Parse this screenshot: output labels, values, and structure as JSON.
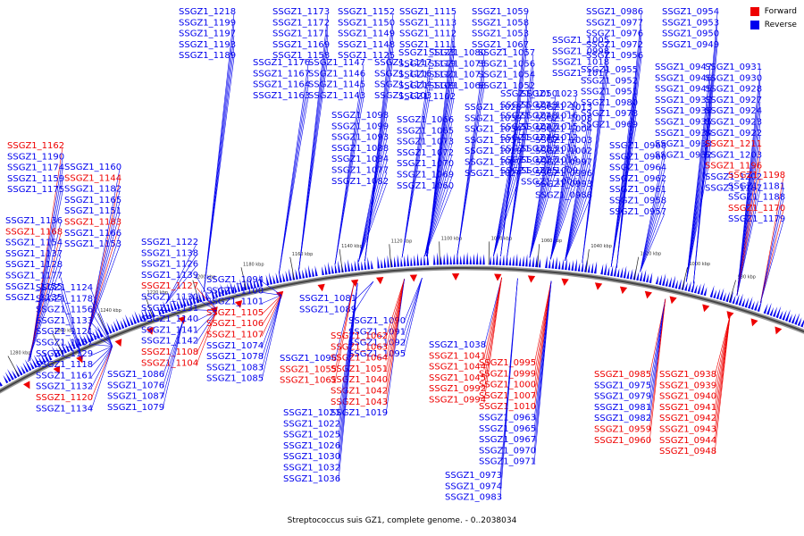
{
  "legend": {
    "forward_label": "Forward",
    "reverse_label": "Reverse",
    "forward_color": "#ee0000",
    "reverse_color": "#0000ee"
  },
  "caption": "Streptococcus suis GZ1, complete genome. - 0..2038034",
  "ticks": [
    "980 kbp",
    "1000 kbp",
    "1020 kbp",
    "1040 kbp",
    "1060 kbp",
    "1080 kbp",
    "1100 kbp",
    "1120 kbp",
    "1140 kbp",
    "1160 kbp",
    "1180 kbp",
    "1200 kbp",
    "1220 kbp",
    "1240 kbp",
    "1260 kbp",
    "1280 kbp"
  ],
  "genes": [
    {
      "name": "SSGZ1_1218",
      "strand": "reverse"
    },
    {
      "name": "SSGZ1_1199",
      "strand": "reverse"
    },
    {
      "name": "SSGZ1_1197",
      "strand": "reverse"
    },
    {
      "name": "SSGZ1_1193",
      "strand": "reverse"
    },
    {
      "name": "SSGZ1_1189",
      "strand": "reverse"
    },
    {
      "name": "SSGZ1_1176",
      "strand": "reverse"
    },
    {
      "name": "SSGZ1_1167",
      "strand": "reverse"
    },
    {
      "name": "SSGZ1_1164",
      "strand": "reverse"
    },
    {
      "name": "SSGZ1_1163",
      "strand": "reverse"
    },
    {
      "name": "SSGZ1_1173",
      "strand": "reverse"
    },
    {
      "name": "SSGZ1_1172",
      "strand": "reverse"
    },
    {
      "name": "SSGZ1_1171",
      "strand": "reverse"
    },
    {
      "name": "SSGZ1_1169",
      "strand": "reverse"
    },
    {
      "name": "SSGZ1_1158",
      "strand": "reverse"
    },
    {
      "name": "SSGZ1_1147",
      "strand": "reverse"
    },
    {
      "name": "SSGZ1_1146",
      "strand": "reverse"
    },
    {
      "name": "SSGZ1_1145",
      "strand": "reverse"
    },
    {
      "name": "SSGZ1_1143",
      "strand": "reverse"
    },
    {
      "name": "SSGZ1_1152",
      "strand": "reverse"
    },
    {
      "name": "SSGZ1_1150",
      "strand": "reverse"
    },
    {
      "name": "SSGZ1_1149",
      "strand": "reverse"
    },
    {
      "name": "SSGZ1_1148",
      "strand": "reverse"
    },
    {
      "name": "SSGZ1_1125",
      "strand": "reverse"
    },
    {
      "name": "SSGZ1_1117",
      "strand": "reverse"
    },
    {
      "name": "SSGZ1_1116",
      "strand": "reverse"
    },
    {
      "name": "SSGZ1_1114",
      "strand": "reverse"
    },
    {
      "name": "SSGZ1_1103",
      "strand": "reverse"
    },
    {
      "name": "SSGZ1_1115",
      "strand": "reverse"
    },
    {
      "name": "SSGZ1_1113",
      "strand": "reverse"
    },
    {
      "name": "SSGZ1_1112",
      "strand": "reverse"
    },
    {
      "name": "SSGZ1_1111",
      "strand": "reverse"
    },
    {
      "name": "SSGZ1_1123",
      "strand": "reverse"
    },
    {
      "name": "SSGZ1_1119",
      "strand": "reverse"
    },
    {
      "name": "SSGZ1_1110",
      "strand": "reverse"
    },
    {
      "name": "SSGZ1_1109",
      "strand": "reverse"
    },
    {
      "name": "SSGZ1_1102",
      "strand": "reverse"
    },
    {
      "name": "SSGZ1_1098",
      "strand": "reverse"
    },
    {
      "name": "SSGZ1_1099",
      "strand": "reverse"
    },
    {
      "name": "SSGZ1_1093",
      "strand": "reverse"
    },
    {
      "name": "SSGZ1_1088",
      "strand": "reverse"
    },
    {
      "name": "SSGZ1_1084",
      "strand": "reverse"
    },
    {
      "name": "SSGZ1_1077",
      "strand": "reverse"
    },
    {
      "name": "SSGZ1_1082",
      "strand": "reverse"
    },
    {
      "name": "SSGZ1_1080",
      "strand": "reverse"
    },
    {
      "name": "SSGZ1_1075",
      "strand": "reverse"
    },
    {
      "name": "SSGZ1_1071",
      "strand": "reverse"
    },
    {
      "name": "SSGZ1_1068",
      "strand": "reverse"
    },
    {
      "name": "SSGZ1_1066",
      "strand": "reverse"
    },
    {
      "name": "SSGZ1_1065",
      "strand": "reverse"
    },
    {
      "name": "SSGZ1_1073",
      "strand": "reverse"
    },
    {
      "name": "SSGZ1_1072",
      "strand": "reverse"
    },
    {
      "name": "SSGZ1_1070",
      "strand": "reverse"
    },
    {
      "name": "SSGZ1_1069",
      "strand": "reverse"
    },
    {
      "name": "SSGZ1_1060",
      "strand": "reverse"
    },
    {
      "name": "SSGZ1_1059",
      "strand": "reverse"
    },
    {
      "name": "SSGZ1_1058",
      "strand": "reverse"
    },
    {
      "name": "SSGZ1_1053",
      "strand": "reverse"
    },
    {
      "name": "SSGZ1_1067",
      "strand": "reverse"
    },
    {
      "name": "SSGZ1_1057",
      "strand": "reverse"
    },
    {
      "name": "SSGZ1_1056",
      "strand": "reverse"
    },
    {
      "name": "SSGZ1_1054",
      "strand": "reverse"
    },
    {
      "name": "SSGZ1_1052",
      "strand": "reverse"
    },
    {
      "name": "SSGZ1_1050",
      "strand": "reverse"
    },
    {
      "name": "SSGZ1_1049",
      "strand": "reverse"
    },
    {
      "name": "SSGZ1_1048",
      "strand": "reverse"
    },
    {
      "name": "SSGZ1_1047",
      "strand": "reverse"
    },
    {
      "name": "SSGZ1_1046",
      "strand": "reverse"
    },
    {
      "name": "SSGZ1_1033",
      "strand": "reverse"
    },
    {
      "name": "SSGZ1_1037",
      "strand": "reverse"
    },
    {
      "name": "SSGZ1_1035",
      "strand": "reverse"
    },
    {
      "name": "SSGZ1_1028",
      "strand": "reverse"
    },
    {
      "name": "SSGZ1_1039",
      "strand": "reverse"
    },
    {
      "name": "SSGZ1_1034",
      "strand": "reverse"
    },
    {
      "name": "SSGZ1_1031",
      "strand": "reverse"
    },
    {
      "name": "SSGZ1_1029",
      "strand": "reverse"
    },
    {
      "name": "SSGZ1_1027",
      "strand": "reverse"
    },
    {
      "name": "SSGZ1_1024",
      "strand": "reverse"
    },
    {
      "name": "SSGZ1_1023",
      "strand": "reverse"
    },
    {
      "name": "SSGZ1_1020",
      "strand": "reverse"
    },
    {
      "name": "SSGZ1_1016",
      "strand": "reverse"
    },
    {
      "name": "SSGZ1_1015",
      "strand": "reverse"
    },
    {
      "name": "SSGZ1_1012",
      "strand": "reverse"
    },
    {
      "name": "SSGZ1_1011",
      "strand": "reverse"
    },
    {
      "name": "SSGZ1_1014",
      "strand": "reverse"
    },
    {
      "name": "SSGZ1_1009",
      "strand": "reverse"
    },
    {
      "name": "SSGZ1_1006",
      "strand": "reverse"
    },
    {
      "name": "SSGZ1_1005",
      "strand": "reverse"
    },
    {
      "name": "SSGZ1_0998",
      "strand": "reverse"
    },
    {
      "name": "SSGZ1_1018",
      "strand": "reverse"
    },
    {
      "name": "SSGZ1_1017",
      "strand": "reverse"
    },
    {
      "name": "SSGZ1_1013",
      "strand": "reverse"
    },
    {
      "name": "SSGZ1_1008",
      "strand": "reverse"
    },
    {
      "name": "SSGZ1_1004",
      "strand": "reverse"
    },
    {
      "name": "SSGZ1_1003",
      "strand": "reverse"
    },
    {
      "name": "SSGZ1_1002",
      "strand": "reverse"
    },
    {
      "name": "SSGZ1_0997",
      "strand": "reverse"
    },
    {
      "name": "SSGZ1_0996",
      "strand": "reverse"
    },
    {
      "name": "SSGZ1_0993",
      "strand": "reverse"
    },
    {
      "name": "SSGZ1_0988",
      "strand": "reverse"
    },
    {
      "name": "SSGZ1_0986",
      "strand": "reverse"
    },
    {
      "name": "SSGZ1_0977",
      "strand": "reverse"
    },
    {
      "name": "SSGZ1_0976",
      "strand": "reverse"
    },
    {
      "name": "SSGZ1_0972",
      "strand": "reverse"
    },
    {
      "name": "SSGZ1_0956",
      "strand": "reverse"
    },
    {
      "name": "SSGZ1_0955",
      "strand": "reverse"
    },
    {
      "name": "SSGZ1_0952",
      "strand": "reverse"
    },
    {
      "name": "SSGZ1_0951",
      "strand": "reverse"
    },
    {
      "name": "SSGZ1_0980",
      "strand": "reverse"
    },
    {
      "name": "SSGZ1_0978",
      "strand": "reverse"
    },
    {
      "name": "SSGZ1_0969",
      "strand": "reverse"
    },
    {
      "name": "SSGZ1_0968",
      "strand": "reverse"
    },
    {
      "name": "SSGZ1_0966",
      "strand": "reverse"
    },
    {
      "name": "SSGZ1_0964",
      "strand": "reverse"
    },
    {
      "name": "SSGZ1_0962",
      "strand": "reverse"
    },
    {
      "name": "SSGZ1_0961",
      "strand": "reverse"
    },
    {
      "name": "SSGZ1_0958",
      "strand": "reverse"
    },
    {
      "name": "SSGZ1_0957",
      "strand": "reverse"
    },
    {
      "name": "SSGZ1_0954",
      "strand": "reverse"
    },
    {
      "name": "SSGZ1_0953",
      "strand": "reverse"
    },
    {
      "name": "SSGZ1_0950",
      "strand": "reverse"
    },
    {
      "name": "SSGZ1_0949",
      "strand": "reverse"
    },
    {
      "name": "SSGZ1_0947",
      "strand": "reverse"
    },
    {
      "name": "SSGZ1_0946",
      "strand": "reverse"
    },
    {
      "name": "SSGZ1_0945",
      "strand": "reverse"
    },
    {
      "name": "SSGZ1_0937",
      "strand": "reverse"
    },
    {
      "name": "SSGZ1_0936",
      "strand": "reverse"
    },
    {
      "name": "SSGZ1_0935",
      "strand": "reverse"
    },
    {
      "name": "SSGZ1_0934",
      "strand": "reverse"
    },
    {
      "name": "SSGZ1_0933",
      "strand": "reverse"
    },
    {
      "name": "SSGZ1_0932",
      "strand": "reverse"
    },
    {
      "name": "SSGZ1_0931",
      "strand": "reverse"
    },
    {
      "name": "SSGZ1_0930",
      "strand": "reverse"
    },
    {
      "name": "SSGZ1_0928",
      "strand": "reverse"
    },
    {
      "name": "SSGZ1_0927",
      "strand": "reverse"
    },
    {
      "name": "SSGZ1_0924",
      "strand": "reverse"
    },
    {
      "name": "SSGZ1_0923",
      "strand": "reverse"
    },
    {
      "name": "SSGZ1_0922",
      "strand": "reverse"
    },
    {
      "name": "SSGZ1_1211",
      "strand": "forward"
    },
    {
      "name": "SSGZ1_1203",
      "strand": "reverse"
    },
    {
      "name": "SSGZ1_1196",
      "strand": "forward"
    },
    {
      "name": "SSGZ1_1202",
      "strand": "reverse"
    },
    {
      "name": "SSGZ1_1187",
      "strand": "reverse"
    },
    {
      "name": "SSGZ1_1198",
      "strand": "forward"
    },
    {
      "name": "SSGZ1_1181",
      "strand": "reverse"
    },
    {
      "name": "SSGZ1_1188",
      "strand": "reverse"
    },
    {
      "name": "SSGZ1_1170",
      "strand": "forward"
    },
    {
      "name": "SSGZ1_1179",
      "strand": "reverse"
    },
    {
      "name": "SSGZ1_1162",
      "strand": "forward"
    },
    {
      "name": "SSGZ1_1190",
      "strand": "reverse"
    },
    {
      "name": "SSGZ1_1174",
      "strand": "reverse"
    },
    {
      "name": "SSGZ1_1159",
      "strand": "reverse"
    },
    {
      "name": "SSGZ1_1175",
      "strand": "reverse"
    },
    {
      "name": "SSGZ1_1160",
      "strand": "reverse"
    },
    {
      "name": "SSGZ1_1144",
      "strand": "forward"
    },
    {
      "name": "SSGZ1_1182",
      "strand": "reverse"
    },
    {
      "name": "SSGZ1_1165",
      "strand": "reverse"
    },
    {
      "name": "SSGZ1_1151",
      "strand": "reverse"
    },
    {
      "name": "SSGZ1_1183",
      "strand": "forward"
    },
    {
      "name": "SSGZ1_1166",
      "strand": "reverse"
    },
    {
      "name": "SSGZ1_1153",
      "strand": "reverse"
    },
    {
      "name": "SSGZ1_1136",
      "strand": "reverse"
    },
    {
      "name": "SSGZ1_1168",
      "strand": "forward"
    },
    {
      "name": "SSGZ1_1154",
      "strand": "reverse"
    },
    {
      "name": "SSGZ1_1137",
      "strand": "reverse"
    },
    {
      "name": "SSGZ1_1128",
      "strand": "reverse"
    },
    {
      "name": "SSGZ1_1177",
      "strand": "reverse"
    },
    {
      "name": "SSGZ1_1155",
      "strand": "reverse"
    },
    {
      "name": "SSGZ1_1135",
      "strand": "reverse"
    },
    {
      "name": "SSGZ1_1124",
      "strand": "reverse"
    },
    {
      "name": "SSGZ1_1178",
      "strand": "reverse"
    },
    {
      "name": "SSGZ1_1156",
      "strand": "reverse"
    },
    {
      "name": "SSGZ1_1133",
      "strand": "reverse"
    },
    {
      "name": "SSGZ1_1121",
      "strand": "reverse"
    },
    {
      "name": "SSGZ1_1157",
      "strand": "reverse"
    },
    {
      "name": "SSGZ1_1129",
      "strand": "reverse"
    },
    {
      "name": "SSGZ1_1118",
      "strand": "reverse"
    },
    {
      "name": "SSGZ1_1161",
      "strand": "reverse"
    },
    {
      "name": "SSGZ1_1132",
      "strand": "reverse"
    },
    {
      "name": "SSGZ1_1120",
      "strand": "forward"
    },
    {
      "name": "SSGZ1_1134",
      "strand": "reverse"
    },
    {
      "name": "SSGZ1_1122",
      "strand": "reverse"
    },
    {
      "name": "SSGZ1_1138",
      "strand": "reverse"
    },
    {
      "name": "SSGZ1_1126",
      "strand": "reverse"
    },
    {
      "name": "SSGZ1_1139",
      "strand": "reverse"
    },
    {
      "name": "SSGZ1_1127",
      "strand": "forward"
    },
    {
      "name": "SSGZ1_1130",
      "strand": "reverse"
    },
    {
      "name": "SSGZ1_1131",
      "strand": "reverse"
    },
    {
      "name": "SSGZ1_1140",
      "strand": "reverse"
    },
    {
      "name": "SSGZ1_1141",
      "strand": "reverse"
    },
    {
      "name": "SSGZ1_1142",
      "strand": "reverse"
    },
    {
      "name": "SSGZ1_1108",
      "strand": "forward"
    },
    {
      "name": "SSGZ1_1104",
      "strand": "forward"
    },
    {
      "name": "SSGZ1_1094",
      "strand": "reverse"
    },
    {
      "name": "SSGZ1_1100",
      "strand": "reverse"
    },
    {
      "name": "SSGZ1_1101",
      "strand": "reverse"
    },
    {
      "name": "SSGZ1_1105",
      "strand": "forward"
    },
    {
      "name": "SSGZ1_1106",
      "strand": "forward"
    },
    {
      "name": "SSGZ1_1107",
      "strand": "forward"
    },
    {
      "name": "SSGZ1_1074",
      "strand": "reverse"
    },
    {
      "name": "SSGZ1_1078",
      "strand": "reverse"
    },
    {
      "name": "SSGZ1_1083",
      "strand": "reverse"
    },
    {
      "name": "SSGZ1_1085",
      "strand": "reverse"
    },
    {
      "name": "SSGZ1_1086",
      "strand": "reverse"
    },
    {
      "name": "SSGZ1_1076",
      "strand": "reverse"
    },
    {
      "name": "SSGZ1_1087",
      "strand": "reverse"
    },
    {
      "name": "SSGZ1_1079",
      "strand": "reverse"
    },
    {
      "name": "SSGZ1_1081",
      "strand": "reverse"
    },
    {
      "name": "SSGZ1_1089",
      "strand": "reverse"
    },
    {
      "name": "SSGZ1_1090",
      "strand": "reverse"
    },
    {
      "name": "SSGZ1_1091",
      "strand": "reverse"
    },
    {
      "name": "SSGZ1_1092",
      "strand": "reverse"
    },
    {
      "name": "SSGZ1_1095",
      "strand": "reverse"
    },
    {
      "name": "SSGZ1_1096",
      "strand": "reverse"
    },
    {
      "name": "SSGZ1_1055",
      "strand": "forward"
    },
    {
      "name": "SSGZ1_1061",
      "strand": "forward"
    },
    {
      "name": "SSGZ1_1062",
      "strand": "forward"
    },
    {
      "name": "SSGZ1_1063",
      "strand": "forward"
    },
    {
      "name": "SSGZ1_1064",
      "strand": "forward"
    },
    {
      "name": "SSGZ1_1051",
      "strand": "forward"
    },
    {
      "name": "SSGZ1_1040",
      "strand": "forward"
    },
    {
      "name": "SSGZ1_1042",
      "strand": "forward"
    },
    {
      "name": "SSGZ1_1043",
      "strand": "forward"
    },
    {
      "name": "SSGZ1_1019",
      "strand": "reverse"
    },
    {
      "name": "SSGZ1_1021",
      "strand": "reverse"
    },
    {
      "name": "SSGZ1_1022",
      "strand": "reverse"
    },
    {
      "name": "SSGZ1_1025",
      "strand": "reverse"
    },
    {
      "name": "SSGZ1_1026",
      "strand": "reverse"
    },
    {
      "name": "SSGZ1_1030",
      "strand": "reverse"
    },
    {
      "name": "SSGZ1_1032",
      "strand": "reverse"
    },
    {
      "name": "SSGZ1_1036",
      "strand": "reverse"
    },
    {
      "name": "SSGZ1_1038",
      "strand": "reverse"
    },
    {
      "name": "SSGZ1_1041",
      "strand": "forward"
    },
    {
      "name": "SSGZ1_1044",
      "strand": "forward"
    },
    {
      "name": "SSGZ1_1045",
      "strand": "forward"
    },
    {
      "name": "SSGZ1_0992",
      "strand": "forward"
    },
    {
      "name": "SSGZ1_0994",
      "strand": "forward"
    },
    {
      "name": "SSGZ1_0995",
      "strand": "forward"
    },
    {
      "name": "SSGZ1_0999",
      "strand": "forward"
    },
    {
      "name": "SSGZ1_1000",
      "strand": "forward"
    },
    {
      "name": "SSGZ1_1007",
      "strand": "forward"
    },
    {
      "name": "SSGZ1_1010",
      "strand": "forward"
    },
    {
      "name": "SSGZ1_0963",
      "strand": "reverse"
    },
    {
      "name": "SSGZ1_0965",
      "strand": "reverse"
    },
    {
      "name": "SSGZ1_0967",
      "strand": "reverse"
    },
    {
      "name": "SSGZ1_0970",
      "strand": "reverse"
    },
    {
      "name": "SSGZ1_0971",
      "strand": "reverse"
    },
    {
      "name": "SSGZ1_0973",
      "strand": "reverse"
    },
    {
      "name": "SSGZ1_0974",
      "strand": "reverse"
    },
    {
      "name": "SSGZ1_0983",
      "strand": "reverse"
    },
    {
      "name": "SSGZ1_0985",
      "strand": "forward"
    },
    {
      "name": "SSGZ1_0975",
      "strand": "reverse"
    },
    {
      "name": "SSGZ1_0979",
      "strand": "reverse"
    },
    {
      "name": "SSGZ1_0981",
      "strand": "reverse"
    },
    {
      "name": "SSGZ1_0982",
      "strand": "reverse"
    },
    {
      "name": "SSGZ1_0959",
      "strand": "forward"
    },
    {
      "name": "SSGZ1_0960",
      "strand": "forward"
    },
    {
      "name": "SSGZ1_0938",
      "strand": "forward"
    },
    {
      "name": "SSGZ1_0939",
      "strand": "forward"
    },
    {
      "name": "SSGZ1_0940",
      "strand": "forward"
    },
    {
      "name": "SSGZ1_0941",
      "strand": "forward"
    },
    {
      "name": "SSGZ1_0942",
      "strand": "forward"
    },
    {
      "name": "SSGZ1_0943",
      "strand": "forward"
    },
    {
      "name": "SSGZ1_0944",
      "strand": "forward"
    },
    {
      "name": "SSGZ1_0948",
      "strand": "forward"
    }
  ]
}
